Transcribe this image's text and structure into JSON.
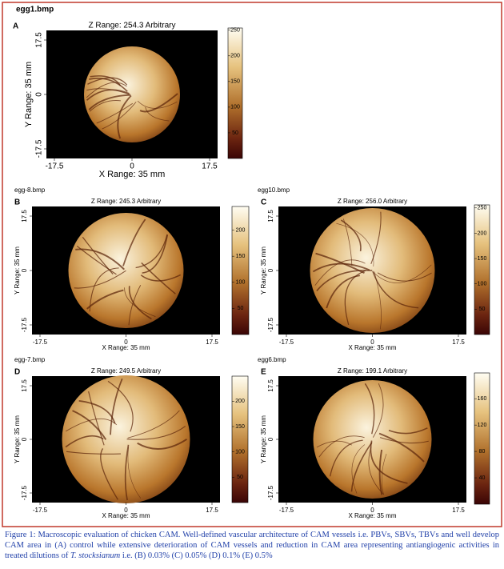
{
  "panels": [
    {
      "filename": "egg1.bmp",
      "letter": "A",
      "z_range": "Z Range: 254.3 Arbitrary",
      "x_label": "X Range: 35 mm",
      "y_label": "Y Range: 35 mm",
      "xlim": [
        -17.5,
        17.5
      ],
      "xticks": [
        -17.5,
        0,
        17.5
      ],
      "ylim": [
        -17.5,
        17.5
      ],
      "yticks": [
        -17.5,
        0,
        17.5
      ],
      "zlim": [
        0,
        254.3
      ],
      "zticks": [
        50,
        100,
        150,
        200,
        250
      ]
    },
    {
      "filename": "egg-8.bmp",
      "letter": "B",
      "z_range": "Z Range: 245.3 Arbitrary",
      "x_label": "X Range: 35 mm",
      "y_label": "Y Range: 35 mm",
      "xlim": [
        -17.5,
        17.5
      ],
      "xticks": [
        -17.5,
        0,
        17.5
      ],
      "ylim": [
        -17.5,
        17.5
      ],
      "yticks": [
        -17.5,
        0,
        17.5
      ],
      "zlim": [
        0,
        245.3
      ],
      "zticks": [
        50,
        100,
        150,
        200
      ]
    },
    {
      "filename": "egg10.bmp",
      "letter": "C",
      "z_range": "Z Range: 256.0 Arbitrary",
      "x_label": "X Range: 35 mm",
      "y_label": "Y Range: 35 mm",
      "xlim": [
        -17.5,
        17.5
      ],
      "xticks": [
        -17.5,
        0,
        17.5
      ],
      "ylim": [
        -17.5,
        17.5
      ],
      "yticks": [
        -17.5,
        0,
        17.5
      ],
      "zlim": [
        0,
        256.0
      ],
      "zticks": [
        50,
        100,
        150,
        200,
        250
      ]
    },
    {
      "filename": "egg-7.bmp",
      "letter": "D",
      "z_range": "Z Range: 249.5 Arbitrary",
      "x_label": "X Range: 35 mm",
      "y_label": "Y Range: 35 mm",
      "xlim": [
        -17.5,
        17.5
      ],
      "xticks": [
        -17.5,
        0,
        17.5
      ],
      "ylim": [
        -17.5,
        17.5
      ],
      "yticks": [
        -17.5,
        0,
        17.5
      ],
      "zlim": [
        0,
        249.5
      ],
      "zticks": [
        50,
        100,
        150,
        200
      ]
    },
    {
      "filename": "egg6.bmp",
      "letter": "E",
      "z_range": "Z Range: 199.1 Arbitrary",
      "x_label": "X Range: 35 mm",
      "y_label": "Y Range: 35 mm",
      "xlim": [
        -17.5,
        17.5
      ],
      "xticks": [
        -17.5,
        0,
        17.5
      ],
      "ylim": [
        -17.5,
        17.5
      ],
      "yticks": [
        -17.5,
        0,
        17.5
      ],
      "zlim": [
        0,
        199.1
      ],
      "zticks": [
        40,
        80,
        120,
        160
      ]
    }
  ],
  "caption": {
    "before": "Figure 1:  Macroscopic evaluation of chicken CAM. Well-defined vascular architecture of CAM vessels i.e. PBVs, SBVs, TBVs and well develop CAM area in (A) control  while extensive deterioration of CAM vessels and reduction in CAM area representing antiangiogenic activities in treated dilutions of ",
    "species": "T. stocksianum",
    "after": " i.e. (B) 0.03%  (C) 0.05% (D) 0.1% (E) 0.5%"
  }
}
